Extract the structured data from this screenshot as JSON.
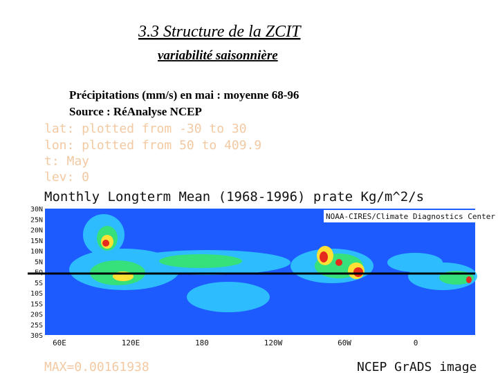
{
  "slide": {
    "title": "3.3 Structure de la ZCIT",
    "subtitle": "variabilité saisonnière",
    "caption": [
      "Précipitations (mm/s) en mai : moyenne 68-96",
      "Source :  RéAnalyse NCEP"
    ]
  },
  "map": {
    "info": [
      "lat: plotted from -30 to 30",
      "lon: plotted from 50 to 409.9",
      "t: May",
      "lev: 0"
    ],
    "title": "Monthly Longterm Mean (1968-1996) prate Kg/m^2/s",
    "credit": "NOAA-CIRES/Climate Diagnostics Center",
    "lat_labels": [
      "30N",
      "25N",
      "20N",
      "15N",
      "10N",
      "5N",
      "EQ",
      "5S",
      "10S",
      "15S",
      "20S",
      "25S",
      "30S"
    ],
    "lon_labels": [
      "60E",
      "120E",
      "180",
      "120W",
      "60W",
      "0"
    ],
    "max": "MAX=0.00161938",
    "footer": "NCEP GrADS image"
  }
}
